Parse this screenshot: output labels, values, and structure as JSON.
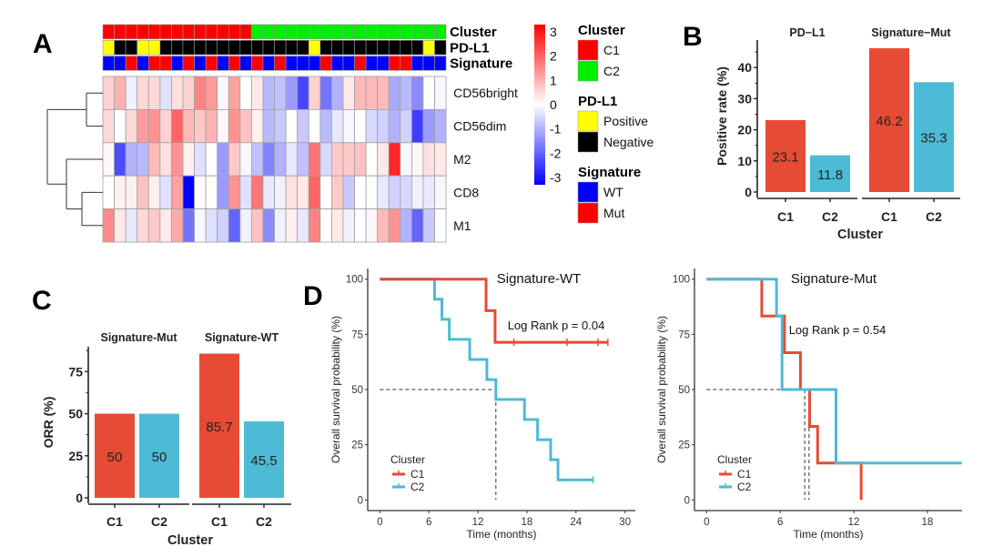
{
  "panel_labels": {
    "a": "A",
    "b": "B",
    "c": "C",
    "d": "D"
  },
  "chart_data": [
    {
      "id": "A",
      "type": "heatmap",
      "title": "",
      "rows": [
        "CD56bright",
        "CD56dim",
        "M2",
        "CD8",
        "M1"
      ],
      "n_columns": 30,
      "values": [
        [
          0.6,
          1.0,
          -0.2,
          0.5,
          0.5,
          -0.4,
          0.4,
          0.6,
          1.6,
          1.3,
          0.1,
          1.2,
          0.0,
          0.3,
          -0.9,
          -0.8,
          -1.3,
          -2.4,
          0.6,
          -1.8,
          -1.0,
          0.3,
          0.9,
          0.9,
          0.9,
          -1.1,
          -0.9,
          -1.5,
          0.0,
          -0.1
        ],
        [
          0.5,
          0.0,
          0.5,
          1.3,
          1.4,
          0.6,
          2.0,
          0.9,
          0.7,
          1.0,
          0.1,
          1.4,
          0.8,
          0.2,
          -0.9,
          -0.7,
          0.0,
          -0.7,
          0.0,
          -0.9,
          -0.3,
          -0.1,
          0.0,
          -0.5,
          -0.6,
          -1.0,
          -0.6,
          -2.5,
          -1.3,
          -1.0
        ],
        [
          0.1,
          -2.3,
          -1.0,
          -0.9,
          0.9,
          0.4,
          1.4,
          0.2,
          -0.4,
          0.0,
          -1.3,
          0.7,
          -0.1,
          -0.8,
          -1.6,
          -1.0,
          -0.3,
          -0.8,
          1.8,
          -0.5,
          0.7,
          0.7,
          0.8,
          0.0,
          0.3,
          2.8,
          -0.1,
          0.1,
          0.4,
          0.3
        ],
        [
          0.0,
          0.2,
          0.2,
          0.8,
          0.2,
          -0.4,
          1.2,
          -3.3,
          0.0,
          0.0,
          -1.3,
          1.4,
          -0.4,
          1.8,
          -0.3,
          -0.2,
          0.4,
          0.3,
          2.0,
          0.0,
          0.7,
          -0.7,
          0.0,
          0.0,
          -0.3,
          -0.6,
          -0.5,
          -0.2,
          -0.3,
          -0.1
        ],
        [
          1.5,
          0.3,
          -0.3,
          0.5,
          0.7,
          0.3,
          1.1,
          -1.8,
          -0.1,
          -0.4,
          -0.6,
          -2.0,
          -0.2,
          0.8,
          -1.5,
          -0.2,
          0.2,
          -0.3,
          1.6,
          0.0,
          0.3,
          -0.2,
          0.0,
          0.1,
          0.9,
          1.4,
          -1.0,
          -2.0,
          -0.7,
          0.0
        ]
      ],
      "annotations": {
        "Cluster": [
          "C1",
          "C1",
          "C1",
          "C1",
          "C1",
          "C1",
          "C1",
          "C1",
          "C1",
          "C1",
          "C1",
          "C1",
          "C1",
          "C2",
          "C2",
          "C2",
          "C2",
          "C2",
          "C2",
          "C2",
          "C2",
          "C2",
          "C2",
          "C2",
          "C2",
          "C2",
          "C2",
          "C2",
          "C2",
          "C2"
        ],
        "PD-L1": [
          "Positive",
          "Negative",
          "Negative",
          "Positive",
          "Positive",
          "Negative",
          "Negative",
          "Negative",
          "Negative",
          "Negative",
          "Negative",
          "Negative",
          "Negative",
          "Negative",
          "Negative",
          "Negative",
          "Negative",
          "Negative",
          "Positive",
          "Negative",
          "Negative",
          "Negative",
          "Negative",
          "Negative",
          "Negative",
          "Negative",
          "Negative",
          "Negative",
          "Positive",
          "Negative"
        ],
        "Signature": [
          "WT",
          "WT",
          "Mut",
          "WT",
          "Mut",
          "Mut",
          "WT",
          "Mut",
          "WT",
          "Mut",
          "WT",
          "Mut",
          "WT",
          "Mut",
          "WT",
          "Mut",
          "WT",
          "WT",
          "WT",
          "Mut",
          "WT",
          "WT",
          "Mut",
          "WT",
          "WT",
          "Mut",
          "Mut",
          "WT",
          "WT",
          "WT"
        ]
      },
      "annotation_names": [
        "Cluster",
        "PD-L1",
        "Signature"
      ],
      "colorbar": {
        "ticks": [
          3,
          2,
          1,
          0,
          -1,
          -2,
          -3
        ],
        "tick_labels": [
          "3",
          "2",
          "1",
          "0",
          "-1",
          "-2",
          "-3"
        ],
        "range": [
          -3.3,
          3.3
        ],
        "low": "#0000ff",
        "mid": "#ffffff",
        "high": "#ff0000"
      },
      "legend": [
        {
          "title": "Cluster",
          "items": [
            {
              "label": "C1",
              "color": "#ff0000"
            },
            {
              "label": "C2",
              "color": "#00ee00"
            }
          ]
        },
        {
          "title": "PD-L1",
          "items": [
            {
              "label": "Positive",
              "color": "#ffff00"
            },
            {
              "label": "Negative",
              "color": "#000000"
            }
          ]
        },
        {
          "title": "Signature",
          "items": [
            {
              "label": "WT",
              "color": "#0000ff"
            },
            {
              "label": "Mut",
              "color": "#ff0000"
            }
          ]
        }
      ],
      "dendrogram": "rows: ((CD56bright, CD56dim), (M2, (CD8, M1)))"
    },
    {
      "id": "B",
      "type": "bar",
      "ylabel": "Positive rate (%)",
      "xlabel": "Cluster",
      "ylim": [
        0,
        48
      ],
      "yticks": [
        0,
        10,
        20,
        30,
        40
      ],
      "facets": [
        {
          "title": "PD−L1",
          "categories": [
            "C1",
            "C2"
          ],
          "values": [
            23.1,
            11.8
          ],
          "labels": [
            "23.1",
            "11.8"
          ]
        },
        {
          "title": "Signature−Mut",
          "categories": [
            "C1",
            "C2"
          ],
          "values": [
            46.2,
            35.3
          ],
          "labels": [
            "46.2",
            "35.3"
          ]
        }
      ],
      "colors": {
        "C1": "#e64b35",
        "C2": "#4dbbd5"
      }
    },
    {
      "id": "C",
      "type": "bar",
      "ylabel": "ORR (%)",
      "xlabel": "Cluster",
      "ylim": [
        0,
        90
      ],
      "yticks": [
        0,
        25,
        50,
        75
      ],
      "facets": [
        {
          "title": "Signature-Mut",
          "categories": [
            "C1",
            "C2"
          ],
          "values": [
            50,
            50
          ],
          "labels": [
            "50",
            "50"
          ]
        },
        {
          "title": "Signature-WT",
          "categories": [
            "C1",
            "C2"
          ],
          "values": [
            85.7,
            45.5
          ],
          "labels": [
            "85.7",
            "45.5"
          ]
        }
      ],
      "colors": {
        "C1": "#e64b35",
        "C2": "#4dbbd5"
      }
    },
    {
      "id": "D-left",
      "type": "line",
      "subtype": "kaplan-meier",
      "title": "Signature-WT",
      "annotation": "Log Rank p = 0.04",
      "xlabel": "Time (months)",
      "ylabel": "Overall survival probability (%)",
      "xlim": [
        0,
        31.5
      ],
      "ylim": [
        0,
        100
      ],
      "xticks": [
        0,
        6,
        12,
        18,
        24,
        30
      ],
      "yticks": [
        0,
        25,
        50,
        75,
        100
      ],
      "legend_title": "Cluster",
      "median_lines": {
        "y": 50,
        "x": [
          14.2
        ]
      },
      "series": [
        {
          "name": "C1",
          "color": "#e64b35",
          "steps": [
            [
              0,
              100
            ],
            [
              13.0,
              85.7
            ],
            [
              14.1,
              71.4
            ]
          ],
          "end": 27.9,
          "censors": [
            16.4,
            22.9,
            26.7,
            27.9
          ]
        },
        {
          "name": "C2",
          "color": "#4dbbd5",
          "steps": [
            [
              0,
              100
            ],
            [
              6.7,
              90.9
            ],
            [
              7.6,
              81.8
            ],
            [
              8.5,
              72.7
            ],
            [
              11.0,
              63.6
            ],
            [
              13.1,
              54.5
            ],
            [
              14.2,
              45.5
            ],
            [
              17.7,
              36.4
            ],
            [
              19.3,
              27.3
            ],
            [
              20.9,
              18.2
            ],
            [
              21.8,
              9.1
            ]
          ],
          "end": 26.1,
          "censors": [
            26.1
          ]
        }
      ]
    },
    {
      "id": "D-right",
      "type": "line",
      "subtype": "kaplan-meier",
      "title": "Signature-Mut",
      "annotation": "Log Rank p = 0.54",
      "xlabel": "Time (months)",
      "ylabel": "Overall survival probability (%)",
      "xlim": [
        0,
        20.8
      ],
      "ylim": [
        0,
        100
      ],
      "xticks": [
        0,
        6,
        12,
        18
      ],
      "yticks": [
        0,
        25,
        50,
        75,
        100
      ],
      "legend_title": "Cluster",
      "median_lines": {
        "y": 50,
        "x": [
          8.0,
          8.35
        ]
      },
      "series": [
        {
          "name": "C1",
          "color": "#e64b35",
          "steps": [
            [
              0,
              100
            ],
            [
              4.5,
              83.3
            ],
            [
              6.35,
              66.7
            ],
            [
              7.65,
              50.0
            ],
            [
              8.4,
              33.3
            ],
            [
              9.05,
              16.7
            ],
            [
              12.6,
              0
            ]
          ],
          "end": 12.6,
          "censors": []
        },
        {
          "name": "C2",
          "color": "#4dbbd5",
          "steps": [
            [
              0,
              100
            ],
            [
              5.7,
              83.3
            ],
            [
              6.15,
              50.0
            ],
            [
              10.55,
              16.7
            ]
          ],
          "end": 20.8,
          "censors": []
        }
      ]
    }
  ]
}
